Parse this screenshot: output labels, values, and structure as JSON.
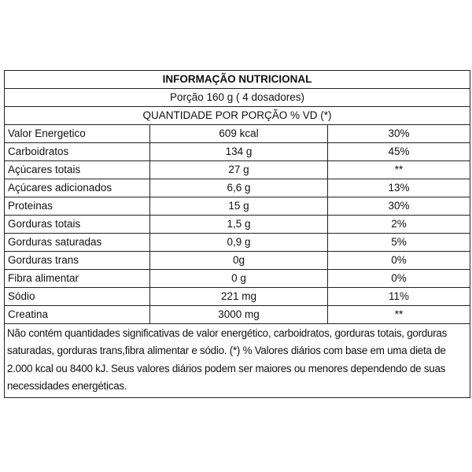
{
  "title": "INFORMAÇÃO NUTRICIONAL",
  "portion": "Porção 160 g ( 4 dosadores)",
  "header": "QUANTIDADE POR PORÇÃO % VD (*)",
  "rows": [
    {
      "name": "Valor Energetico",
      "amount": "609 kcal",
      "vd": "30%"
    },
    {
      "name": "Carboidratos",
      "amount": "134 g",
      "vd": "45%"
    },
    {
      "name": "Açúcares totais",
      "amount": "27 g",
      "vd": "**"
    },
    {
      "name": "Açúcares adicionados",
      "amount": "6,6 g",
      "vd": "13%"
    },
    {
      "name": "Proteinas",
      "amount": "15 g",
      "vd": "30%"
    },
    {
      "name": "Gorduras totais",
      "amount": "1,5 g",
      "vd": "2%"
    },
    {
      "name": "Gorduras saturadas",
      "amount": "0,9 g",
      "vd": "5%"
    },
    {
      "name": "Gorduras trans",
      "amount": "0g",
      "vd": "0%"
    },
    {
      "name": "Fibra alimentar",
      "amount": "0 g",
      "vd": "0%"
    },
    {
      "name": "Sódio",
      "amount": "221 mg",
      "vd": "11%"
    },
    {
      "name": "Creatina",
      "amount": "3000 mg",
      "vd": "**"
    }
  ],
  "footnote": "Não contém quantidades significativas de valor energético, carboidratos, gorduras totais, gorduras saturadas, gorduras trans,fibra alimentar e sódio.  (*) % Valores diários com base em uma dieta de 2.000 kcal ou 8400 kJ.  Seus valores diários podem ser maiores ou menores dependendo de suas necessidades energéticas."
}
